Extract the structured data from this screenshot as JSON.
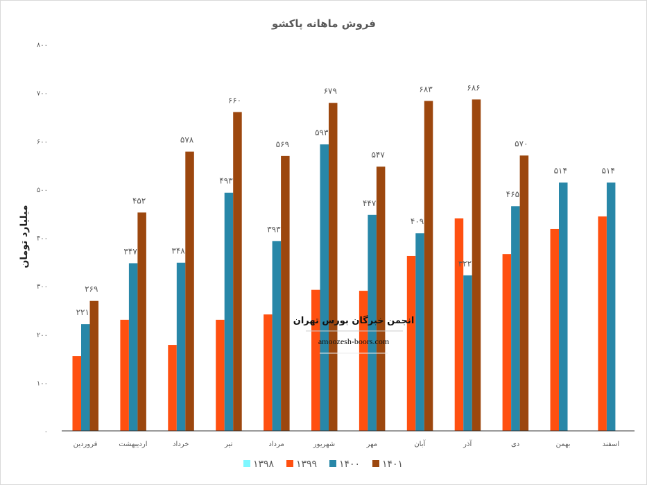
{
  "chart_data": {
    "type": "bar",
    "title": "فروش ماهانه پاکشو",
    "ylabel": "میلیارد تومان",
    "xlabel": "",
    "ylim": [
      0,
      800
    ],
    "yticks": [
      0,
      100,
      200,
      300,
      400,
      500,
      600,
      700,
      800
    ],
    "grid": false,
    "legend_position": "bottom",
    "categories": [
      "فروردین",
      "اردیبهشت",
      "خرداد",
      "تیر",
      "مرداد",
      "شهریور",
      "مهر",
      "آبان",
      "آذر",
      "دی",
      "بهمن",
      "اسفند"
    ],
    "series": [
      {
        "name": "1398",
        "color": "#7ff7ff",
        "values": [
          null,
          null,
          null,
          null,
          null,
          null,
          null,
          null,
          null,
          null,
          null,
          null
        ],
        "labels": false
      },
      {
        "name": "1399",
        "color": "#ff5010",
        "values": [
          155,
          230,
          178,
          230,
          241,
          292,
          290,
          362,
          440,
          366,
          418,
          444
        ],
        "labels": false
      },
      {
        "name": "1400",
        "color": "#2887a8",
        "values": [
          221,
          347,
          348,
          493,
          393,
          593,
          447,
          409,
          322,
          465,
          514,
          514
        ],
        "labels": true
      },
      {
        "name": "1401",
        "color": "#9c470e",
        "values": [
          269,
          452,
          578,
          660,
          569,
          679,
          547,
          683,
          686,
          570,
          null,
          null
        ],
        "labels": true
      }
    ]
  },
  "watermark": {
    "line1": "انجمن خبرگان بورس تهران",
    "line2": "amoozesh-boors.com"
  }
}
